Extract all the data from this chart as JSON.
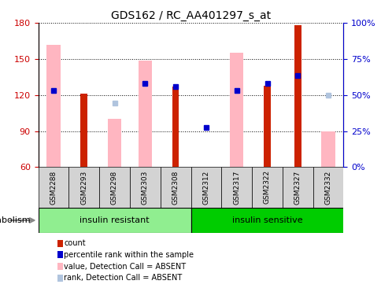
{
  "title": "GDS162 / RC_AA401297_s_at",
  "samples": [
    "GSM2288",
    "GSM2293",
    "GSM2298",
    "GSM2303",
    "GSM2308",
    "GSM2312",
    "GSM2317",
    "GSM2322",
    "GSM2327",
    "GSM2332"
  ],
  "groups": [
    {
      "label": "insulin resistant",
      "color": "#90ee90",
      "start": 0,
      "end": 5
    },
    {
      "label": "insulin sensitive",
      "color": "#00cc00",
      "start": 5,
      "end": 10
    }
  ],
  "ylim_left": [
    60,
    180
  ],
  "ylim_right": [
    0,
    100
  ],
  "yticks_left": [
    60,
    90,
    120,
    150,
    180
  ],
  "ytick_labels_right": [
    "0%",
    "25%",
    "50%",
    "75%",
    "100%"
  ],
  "red_bars": [
    null,
    121,
    null,
    null,
    127,
    null,
    null,
    128,
    178,
    null
  ],
  "blue_dots_left": [
    124,
    null,
    null,
    130,
    127,
    93,
    124,
    130,
    136,
    null
  ],
  "pink_bars": [
    162,
    null,
    100,
    149,
    null,
    null,
    155,
    null,
    null,
    90
  ],
  "light_blue_dots_left": [
    124,
    null,
    113,
    130,
    null,
    null,
    124,
    null,
    null,
    120
  ],
  "left_axis_color": "#cc0000",
  "right_axis_color": "#0000cc",
  "legend_items": [
    {
      "color": "#cc2200",
      "label": "count"
    },
    {
      "color": "#0000cc",
      "label": "percentile rank within the sample"
    },
    {
      "color": "#ffb6c1",
      "label": "value, Detection Call = ABSENT"
    },
    {
      "color": "#b0c4de",
      "label": "rank, Detection Call = ABSENT"
    }
  ],
  "metabolism_label": "metabolism"
}
